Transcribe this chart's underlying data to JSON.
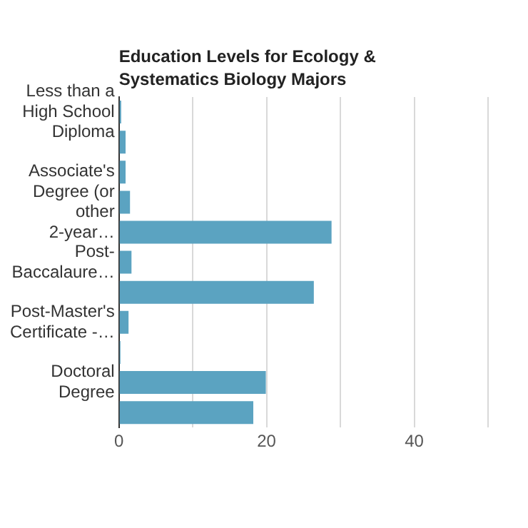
{
  "chart_data": {
    "type": "bar",
    "orientation": "horizontal",
    "title": "Education Levels for Ecology & Systematics Biology Majors",
    "categories": [
      "Less than a High School Diploma",
      null,
      null,
      "Associate's Degree (or other 2-year…",
      null,
      "Post-Baccalaure…",
      null,
      "Post-Master's Certificate -…",
      null,
      "Doctoral Degree",
      null
    ],
    "values": [
      0.3,
      0.9,
      0.9,
      1.5,
      28.8,
      1.7,
      26.4,
      1.3,
      0.2,
      19.9,
      18.2
    ],
    "color": "#5ba3c1",
    "xlim": [
      0,
      50
    ],
    "xticks": [
      0,
      {
        "value": 10,
        "label": null
      },
      20,
      {
        "value": 30,
        "label": null
      },
      40,
      {
        "value": 50,
        "label": null
      }
    ],
    "grid": "x",
    "legend": false
  }
}
